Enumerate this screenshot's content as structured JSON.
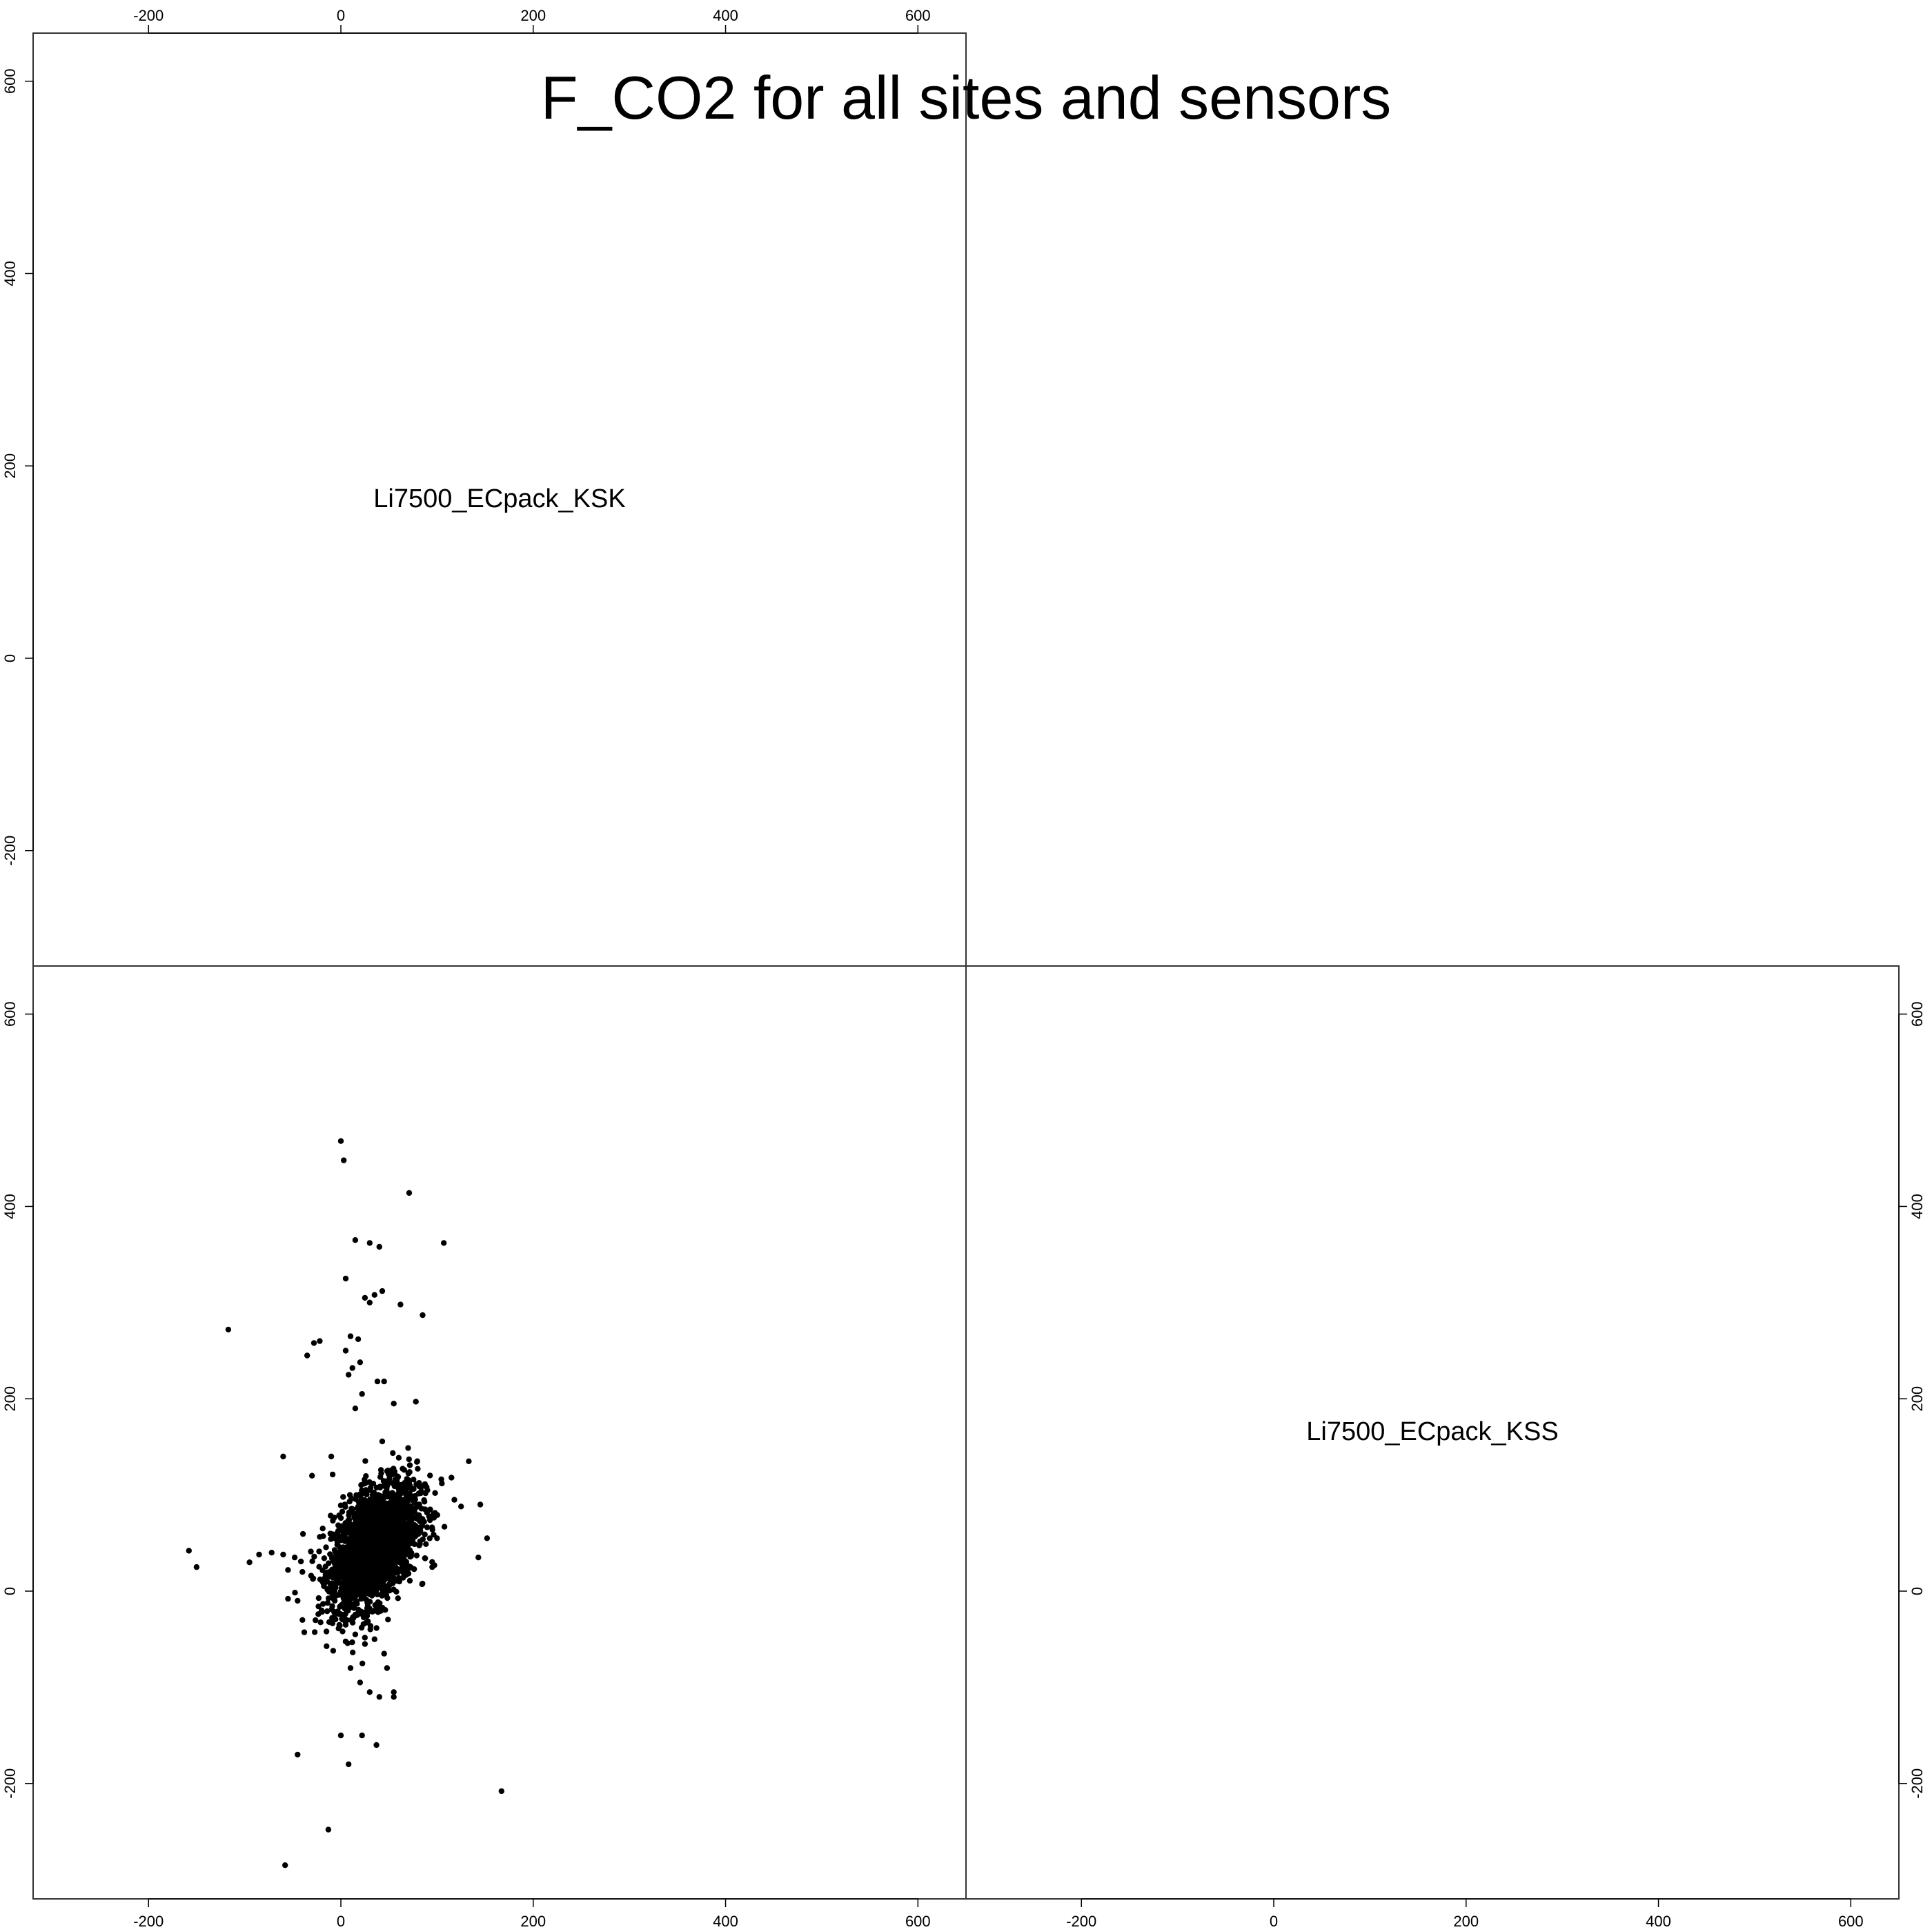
{
  "title": "F_CO2 for all sites and sensors",
  "chart_data": {
    "type": "scatter",
    "title": "F_CO2 for all sites and sensors",
    "layout": "scatterplot matrix (pairs), 2 variables; diagonal panels hold variable names, lower panel holds the scatter, upper panel empty",
    "variables": [
      "Li7500_ECpack_KSK",
      "Li7500_ECpack_KSS"
    ],
    "xlim": [
      -320,
      650
    ],
    "ylim": [
      -320,
      650
    ],
    "ticks": [
      "-200",
      "0",
      "200",
      "400",
      "600"
    ],
    "grid": false,
    "legend": "none",
    "point_color": "#000000",
    "panels": [
      {
        "row": 1,
        "col": 1,
        "kind": "diagonal-label",
        "label": "Li7500_ECpack_KSK"
      },
      {
        "row": 1,
        "col": 2,
        "kind": "empty"
      },
      {
        "row": 2,
        "col": 1,
        "kind": "scatter",
        "xlabel": "Li7500_ECpack_KSK",
        "ylabel": "Li7500_ECpack_KSS"
      },
      {
        "row": 2,
        "col": 2,
        "kind": "diagonal-label",
        "label": "Li7500_ECpack_KSS"
      }
    ],
    "scatter": {
      "description": "dense cloud of points concentrated near x 0 to 100, y -20 to 130 with scattered outliers",
      "cluster": {
        "count": 2600,
        "x_mean": 35,
        "y_mean": 48,
        "x_sd": 22,
        "y_sd": 32,
        "correlation": 0.45
      },
      "outliers": [
        [
          0,
          468
        ],
        [
          3,
          448
        ],
        [
          71,
          414
        ],
        [
          107,
          362
        ],
        [
          15,
          365
        ],
        [
          30,
          362
        ],
        [
          40,
          358
        ],
        [
          5,
          325
        ],
        [
          25,
          305
        ],
        [
          35,
          308
        ],
        [
          43,
          312
        ],
        [
          30,
          300
        ],
        [
          62,
          298
        ],
        [
          85,
          287
        ],
        [
          -117,
          272
        ],
        [
          -28,
          258
        ],
        [
          -22,
          260
        ],
        [
          -35,
          245
        ],
        [
          10,
          265
        ],
        [
          18,
          262
        ],
        [
          5,
          250
        ],
        [
          20,
          238
        ],
        [
          12,
          232
        ],
        [
          8,
          225
        ],
        [
          38,
          218
        ],
        [
          45,
          218
        ],
        [
          22,
          205
        ],
        [
          55,
          195
        ],
        [
          78,
          197
        ],
        [
          15,
          190
        ],
        [
          -150,
          25
        ],
        [
          -158,
          42
        ],
        [
          -85,
          38
        ],
        [
          -95,
          30
        ],
        [
          -72,
          40
        ],
        [
          -60,
          38
        ],
        [
          -48,
          35
        ],
        [
          -40,
          20
        ],
        [
          -55,
          22
        ],
        [
          -10,
          140
        ],
        [
          -60,
          140
        ],
        [
          -30,
          120
        ],
        [
          133,
          135
        ],
        [
          145,
          90
        ],
        [
          143,
          35
        ],
        [
          152,
          55
        ],
        [
          118,
          95
        ],
        [
          115,
          118
        ],
        [
          105,
          112
        ],
        [
          98,
          102
        ],
        [
          125,
          88
        ],
        [
          100,
          55
        ],
        [
          95,
          25
        ],
        [
          -55,
          -8
        ],
        [
          -40,
          -30
        ],
        [
          -45,
          -10
        ],
        [
          -20,
          -20
        ],
        [
          -15,
          -42
        ],
        [
          5,
          -35
        ],
        [
          15,
          -45
        ],
        [
          25,
          -55
        ],
        [
          35,
          -50
        ],
        [
          45,
          -65
        ],
        [
          -8,
          -62
        ],
        [
          10,
          -80
        ],
        [
          20,
          -95
        ],
        [
          30,
          -105
        ],
        [
          40,
          -110
        ],
        [
          55,
          -105
        ],
        [
          48,
          -80
        ],
        [
          55,
          -110
        ],
        [
          22,
          -150
        ],
        [
          0,
          -150
        ],
        [
          37,
          -160
        ],
        [
          -45,
          -170
        ],
        [
          8,
          -180
        ],
        [
          167,
          -208
        ],
        [
          -13,
          -248
        ],
        [
          -58,
          -285
        ]
      ]
    }
  }
}
